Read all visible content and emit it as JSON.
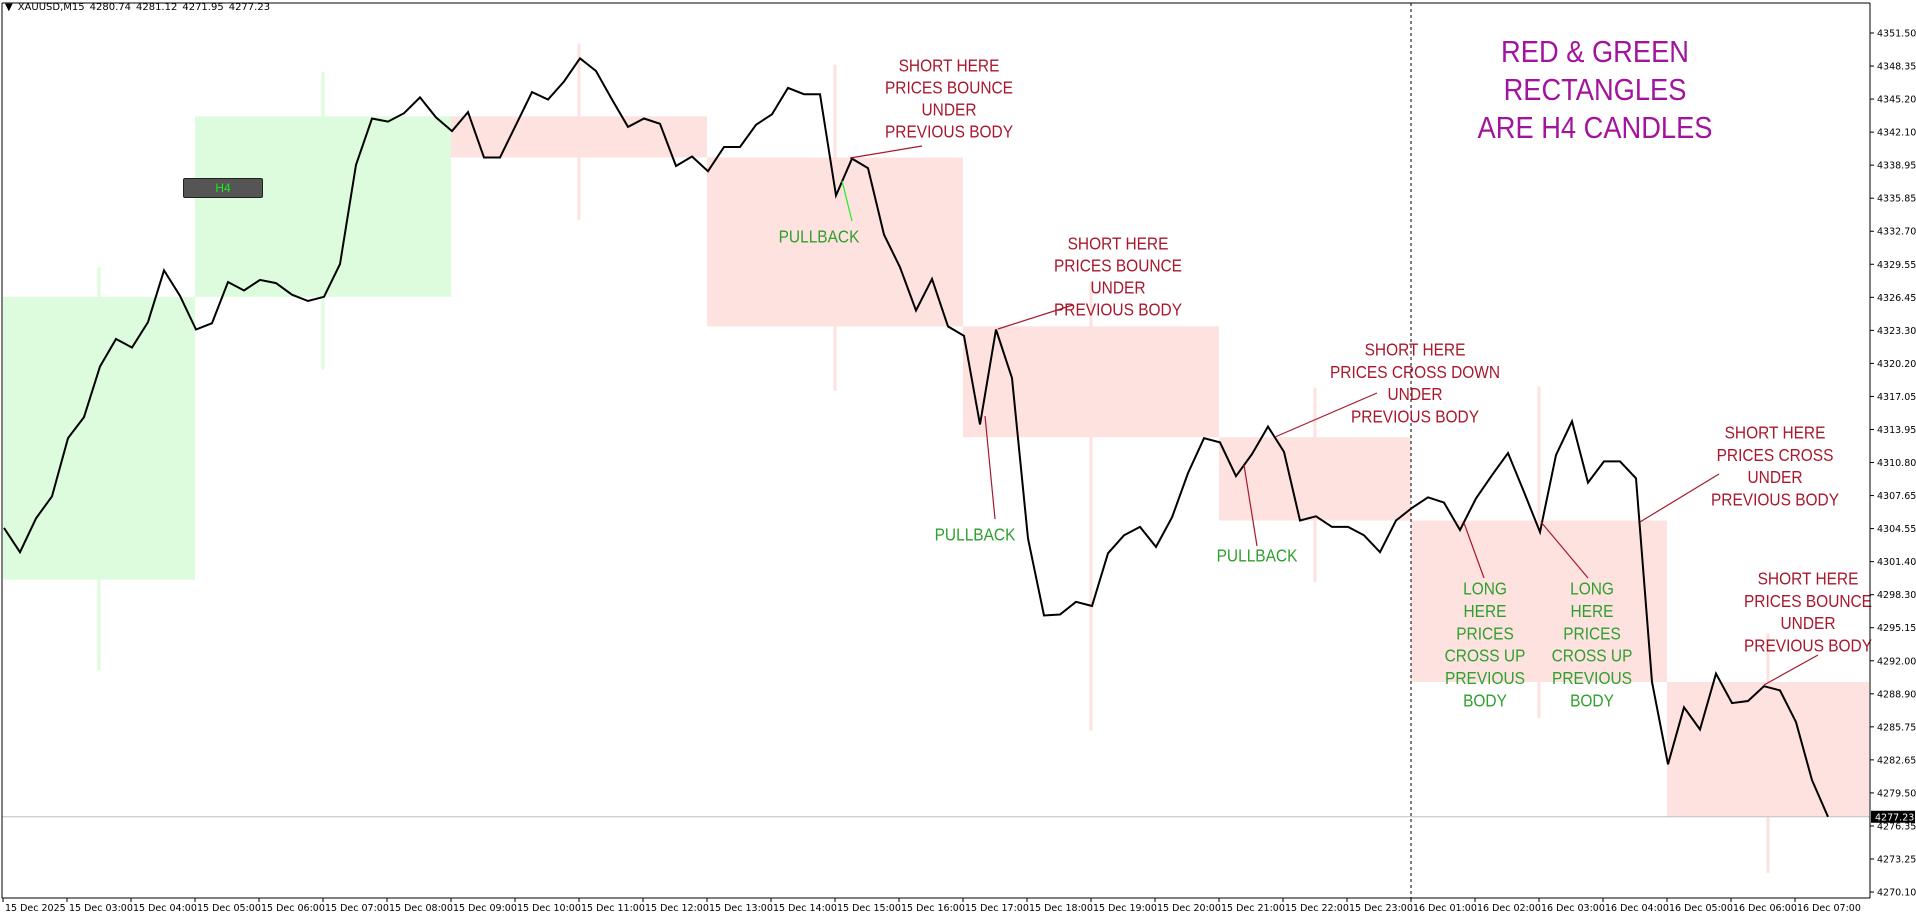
{
  "header": {
    "menu_icon": "triangle-down-icon",
    "symbol": "XAUUSD,M15",
    "open": "4280.74",
    "high": "4281.12",
    "low": "4271.95",
    "close": "4277.23"
  },
  "h4_button": "H4",
  "title_lines": [
    "RED & GREEN",
    "RECTANGLES",
    "ARE  H4 CANDLES"
  ],
  "colors": {
    "line": "#000000",
    "bull_rect": "#DDFCDD",
    "bear_rect": "#FDE2E0",
    "short_text": "#A8172B",
    "long_text": "#2EA02E",
    "title": "#A2149E",
    "pullback_pointer": "#22EE22"
  },
  "annotations": [
    {
      "type": "short",
      "lines": [
        "SHORT  HERE",
        "PRICES BOUNCE",
        "UNDER",
        "PREVIOUS  BODY"
      ]
    },
    {
      "type": "pullback",
      "lines": [
        "PULLBACK"
      ]
    },
    {
      "type": "short",
      "lines": [
        "SHORT  HERE",
        "PRICES BOUNCE",
        "UNDER",
        "PREVIOUS  BODY"
      ]
    },
    {
      "type": "pullback",
      "lines": [
        "PULLBACK"
      ]
    },
    {
      "type": "short",
      "lines": [
        "SHORT  HERE",
        "PRICES  CROSS DOWN",
        "UNDER",
        "PREVIOUS  BODY"
      ]
    },
    {
      "type": "pullback",
      "lines": [
        "PULLBACK"
      ]
    },
    {
      "type": "long",
      "lines": [
        "LONG",
        "HERE",
        "PRICES",
        "CROSS UP",
        "PREVIOUS",
        "BODY"
      ]
    },
    {
      "type": "long",
      "lines": [
        "LONG",
        "HERE",
        "PRICES",
        "CROSS UP",
        "PREVIOUS",
        "BODY"
      ]
    },
    {
      "type": "short",
      "lines": [
        "SHORT  HERE",
        "PRICES  CROSS",
        "UNDER",
        "PREVIOUS  BODY"
      ]
    },
    {
      "type": "short",
      "lines": [
        "SHORT  HERE",
        "PRICES BOUNCE",
        "UNDER",
        "PREVIOUS  BODY"
      ]
    }
  ],
  "chart_data": {
    "type": "line",
    "symbol": "XAUUSD",
    "timeframe": "M15",
    "ylim": [
      4270.1,
      4351.5
    ],
    "y_tick_labels": [
      "4351.50",
      "4348.35",
      "4345.20",
      "4342.10",
      "4338.95",
      "4335.85",
      "4332.70",
      "4329.55",
      "4326.45",
      "4323.30",
      "4320.20",
      "4317.05",
      "4313.95",
      "4310.80",
      "4307.65",
      "4304.55",
      "4301.40",
      "4298.30",
      "4295.15",
      "4292.00",
      "4288.90",
      "4285.75",
      "4282.65",
      "4279.50",
      "4276.35",
      "4273.25",
      "4270.10"
    ],
    "x_tick_labels": [
      "15 Dec 2025",
      "15 Dec 03:00",
      "15 Dec 04:00",
      "15 Dec 05:00",
      "15 Dec 06:00",
      "15 Dec 07:00",
      "15 Dec 08:00",
      "15 Dec 09:00",
      "15 Dec 10:00",
      "15 Dec 11:00",
      "15 Dec 12:00",
      "15 Dec 13:00",
      "15 Dec 14:00",
      "15 Dec 15:00",
      "15 Dec 16:00",
      "15 Dec 17:00",
      "15 Dec 18:00",
      "15 Dec 19:00",
      "15 Dec 20:00",
      "15 Dec 21:00",
      "15 Dec 22:00",
      "15 Dec 23:00",
      "16 Dec 01:00",
      "16 Dec 02:00",
      "16 Dec 03:00",
      "16 Dec 04:00",
      "16 Dec 05:00",
      "16 Dec 06:00",
      "16 Dec 07:00"
    ],
    "bars_per_x_tick": 4,
    "current_price": "4277.23",
    "close_series": [
      4304.6,
      4302.3,
      4305.5,
      4307.6,
      4313.1,
      4315.1,
      4319.9,
      4322.5,
      4321.7,
      4324.1,
      4329.0,
      4326.6,
      4323.4,
      4324.0,
      4327.9,
      4327.1,
      4328.1,
      4327.8,
      4326.7,
      4326.1,
      4326.5,
      4329.6,
      4339.0,
      4343.4,
      4343.1,
      4343.9,
      4345.4,
      4343.5,
      4342.2,
      4344.0,
      4339.7,
      4339.7,
      4342.8,
      4345.9,
      4345.2,
      4346.9,
      4349.1,
      4347.9,
      4345.2,
      4342.6,
      4343.4,
      4342.9,
      4338.9,
      4339.8,
      4338.4,
      4340.7,
      4340.7,
      4342.8,
      4343.8,
      4346.3,
      4345.7,
      4345.7,
      4336.1,
      4339.6,
      4338.7,
      4332.4,
      4329.3,
      4325.2,
      4328.2,
      4323.7,
      4322.8,
      4314.4,
      4323.4,
      4318.8,
      4303.6,
      4296.3,
      4296.4,
      4297.6,
      4297.2,
      4302.2,
      4303.9,
      4304.7,
      4302.8,
      4305.6,
      4309.8,
      4313.1,
      4312.7,
      4309.5,
      4311.6,
      4314.2,
      4311.8,
      4305.3,
      4305.7,
      4304.7,
      4304.7,
      4303.9,
      4302.3,
      4305.3,
      4306.5,
      4307.5,
      4307.0,
      4304.4,
      4307.4,
      4309.6,
      4311.7,
      4308.0,
      4304.2,
      4311.5,
      4314.7,
      4308.9,
      4310.9,
      4310.9,
      4309.3,
      4290.0,
      4282.2,
      4287.6,
      4285.5,
      4290.8,
      4288.0,
      4288.2,
      4289.6,
      4289.2,
      4286.2,
      4280.7,
      4277.23
    ],
    "h4_candles": [
      {
        "start_bar": 0,
        "end_bar": 12,
        "dir": "bull",
        "open": 4299.7,
        "close": 4326.5,
        "high": 4329.3,
        "low": 4291.1
      },
      {
        "start_bar": 12,
        "end_bar": 28,
        "dir": "bull",
        "open": 4326.5,
        "close": 4343.6,
        "high": 4347.8,
        "low": 4319.6
      },
      {
        "start_bar": 28,
        "end_bar": 44,
        "dir": "bear",
        "open": 4343.6,
        "close": 4339.7,
        "high": 4350.5,
        "low": 4333.8
      },
      {
        "start_bar": 44,
        "end_bar": 60,
        "dir": "bear",
        "open": 4339.7,
        "close": 4323.7,
        "high": 4348.5,
        "low": 4317.6
      },
      {
        "start_bar": 60,
        "end_bar": 76,
        "dir": "bear",
        "open": 4323.7,
        "close": 4313.2,
        "high": 4327.9,
        "low": 4285.4
      },
      {
        "start_bar": 76,
        "end_bar": 88,
        "dir": "bear",
        "open": 4313.2,
        "close": 4305.3,
        "high": 4317.9,
        "low": 4299.5
      },
      {
        "start_bar": 88,
        "end_bar": 104,
        "dir": "bear",
        "open": 4305.3,
        "close": 4290.0,
        "high": 4318.0,
        "low": 4286.6
      },
      {
        "start_bar": 104,
        "end_bar": 117,
        "dir": "bear",
        "open": 4290.0,
        "close": 4277.23,
        "high": 4294.6,
        "low": 4271.9
      }
    ],
    "day_separator_bar": 88,
    "grid": false
  }
}
